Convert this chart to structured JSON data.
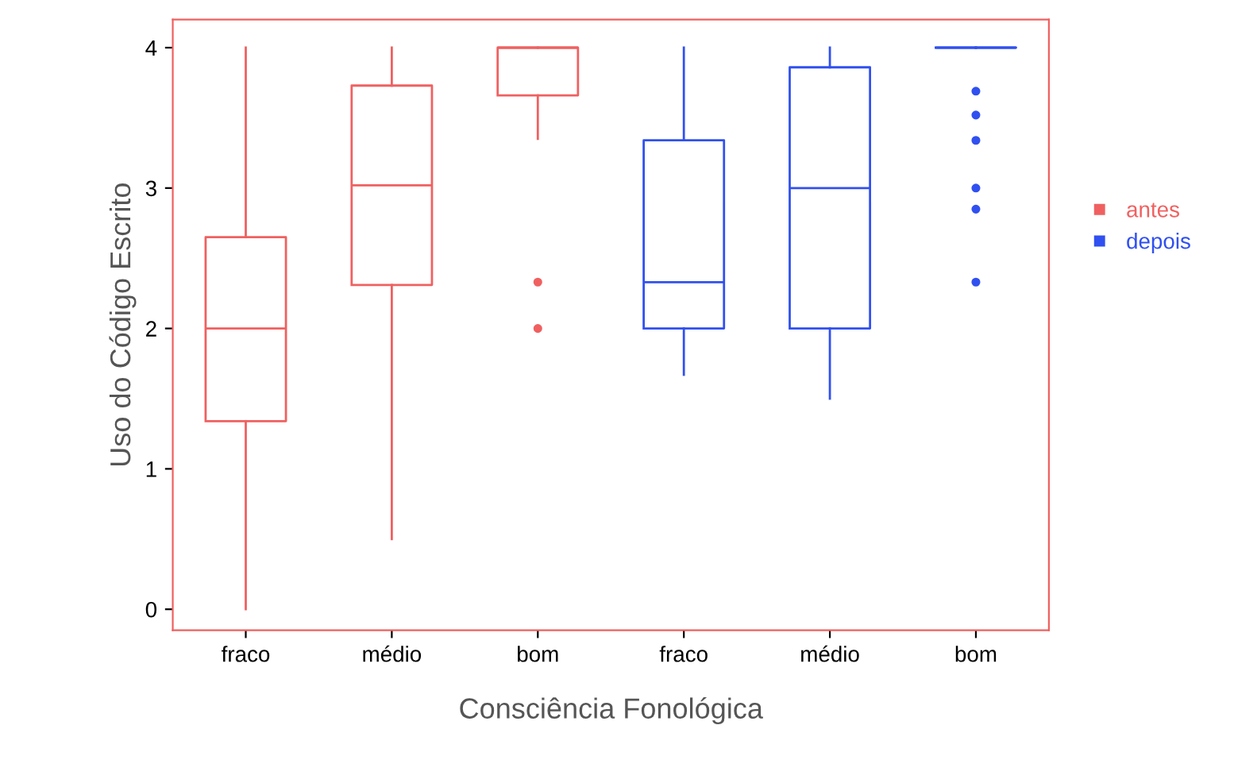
{
  "chart_data": {
    "type": "box",
    "xlabel": "Consciência Fonológica",
    "ylabel": "Uso do Código Escrito",
    "categories": [
      "fraco",
      "médio",
      "bom",
      "fraco",
      "médio",
      "bom"
    ],
    "ylim": [
      -0.15,
      4.2
    ],
    "yticks": [
      0,
      1,
      2,
      3,
      4
    ],
    "grid": false,
    "legend": "right",
    "series": [
      {
        "name": "antes",
        "color": "#f06060",
        "boxes": [
          {
            "low": 0,
            "q1": 1.34,
            "median": 2.0,
            "q3": 2.65,
            "high": 4
          },
          {
            "low": 0.5,
            "q1": 2.31,
            "median": 3.02,
            "q3": 3.73,
            "high": 4
          },
          {
            "low": 3.35,
            "q1": 3.66,
            "median": 4,
            "q3": 4,
            "high": 4,
            "outliers": [
              2.33,
              2.0
            ]
          },
          null,
          null,
          null
        ]
      },
      {
        "name": "depois",
        "color": "#3050f0",
        "boxes": [
          null,
          null,
          null,
          {
            "low": 1.67,
            "q1": 2.0,
            "median": 2.33,
            "q3": 3.34,
            "high": 4
          },
          {
            "low": 1.5,
            "q1": 2.0,
            "median": 3.0,
            "q3": 3.86,
            "high": 4
          },
          {
            "low": 4,
            "q1": 4,
            "median": 4,
            "q3": 4,
            "high": 4,
            "outliers": [
              3.69,
              3.52,
              3.34,
              3.0,
              2.85,
              2.33
            ]
          }
        ]
      }
    ]
  }
}
